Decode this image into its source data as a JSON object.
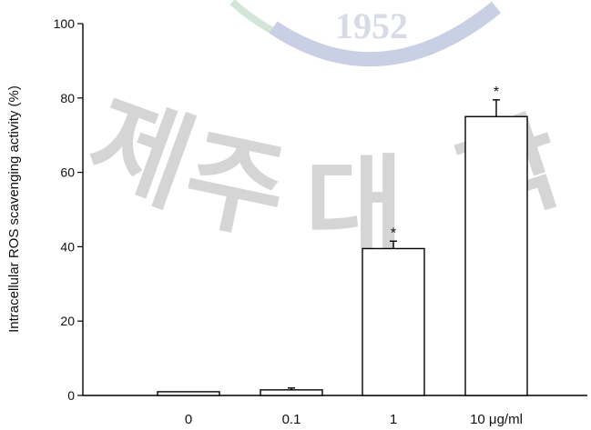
{
  "watermark": {
    "year": "1952",
    "chars": [
      "제",
      "주",
      "대",
      "학"
    ],
    "colors": {
      "text": "#d5d5d5",
      "arc_blue": "#c9cfe4",
      "arc_green": "#d3e6d8"
    }
  },
  "chart_data": {
    "type": "bar",
    "title": "",
    "xlabel": "",
    "ylabel": "Intracellular ROS scavenging activity (%)",
    "categories": [
      "0",
      "0.1",
      "1",
      "10 μg/ml"
    ],
    "values": [
      1,
      1.5,
      39.5,
      75
    ],
    "errors": [
      0,
      0.5,
      2,
      4.5
    ],
    "significance": [
      "",
      "",
      "*",
      "*"
    ],
    "ylim": [
      0,
      100
    ],
    "yticks": [
      0,
      20,
      40,
      60,
      80,
      100
    ],
    "grid": false,
    "legend": "none",
    "bar_fill": "#ffffff",
    "bar_stroke": "#000000"
  }
}
